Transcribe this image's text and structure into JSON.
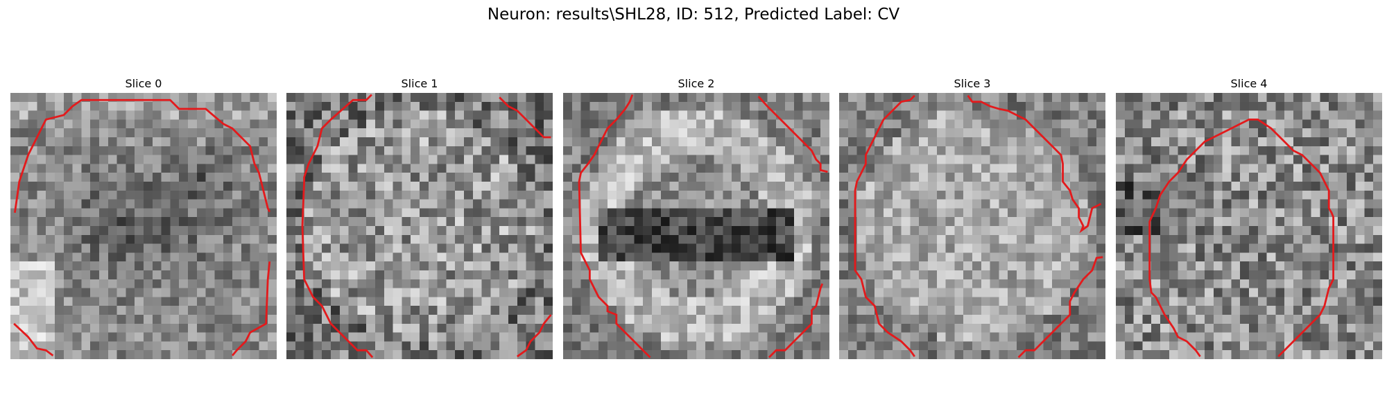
{
  "figure": {
    "title": "Neuron: results\\SHL28, ID: 512, Predicted Label: CV",
    "contour_color": "#e31a1c"
  },
  "slices": [
    {
      "label": "Slice 0",
      "seed": 11,
      "pattern": "dark-center"
    },
    {
      "label": "Slice 1",
      "seed": 23,
      "pattern": "noisy"
    },
    {
      "label": "Slice 2",
      "seed": 37,
      "pattern": "ring"
    },
    {
      "label": "Slice 3",
      "seed": 41,
      "pattern": "light-center"
    },
    {
      "label": "Slice 4",
      "seed": 53,
      "pattern": "noisy-mid"
    }
  ]
}
